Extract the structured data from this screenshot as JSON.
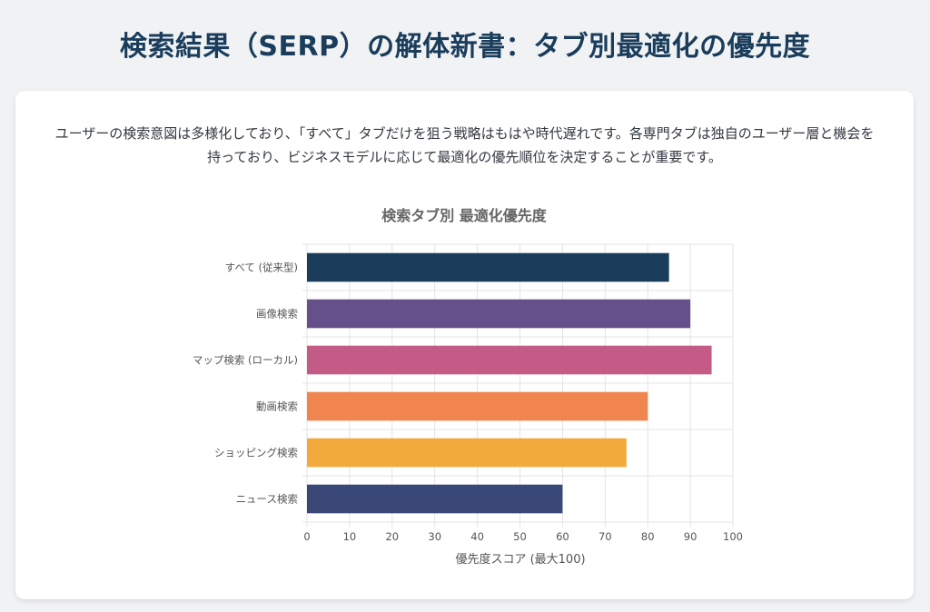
{
  "page": {
    "title": "検索結果（SERP）の解体新書：タブ別最適化の優先度"
  },
  "card": {
    "intro": "ユーザーの検索意図は多様化しており、「すべて」タブだけを狙う戦略はもはや時代遅れです。各専門タブは独自のユーザー層と機会を持っており、ビジネスモデルに応じて最適化の優先順位を決定することが重要です。"
  },
  "chart_data": {
    "type": "bar",
    "orientation": "horizontal",
    "title": "検索タブ別 最適化優先度",
    "xlabel": "優先度スコア (最大100)",
    "ylabel": "",
    "xlim": [
      0,
      100
    ],
    "xticks": [
      0,
      10,
      20,
      30,
      40,
      50,
      60,
      70,
      80,
      90,
      100
    ],
    "grid": true,
    "legend": "none",
    "categories": [
      "すべて (従来型)",
      "画像検索",
      "マップ検索 (ローカル)",
      "動画検索",
      "ショッピング検索",
      "ニュース検索"
    ],
    "values": [
      85,
      90,
      95,
      80,
      75,
      60
    ],
    "colors": [
      "#1b3d5c",
      "#66508c",
      "#c45a86",
      "#f0854f",
      "#f2aa3c",
      "#394877"
    ]
  }
}
